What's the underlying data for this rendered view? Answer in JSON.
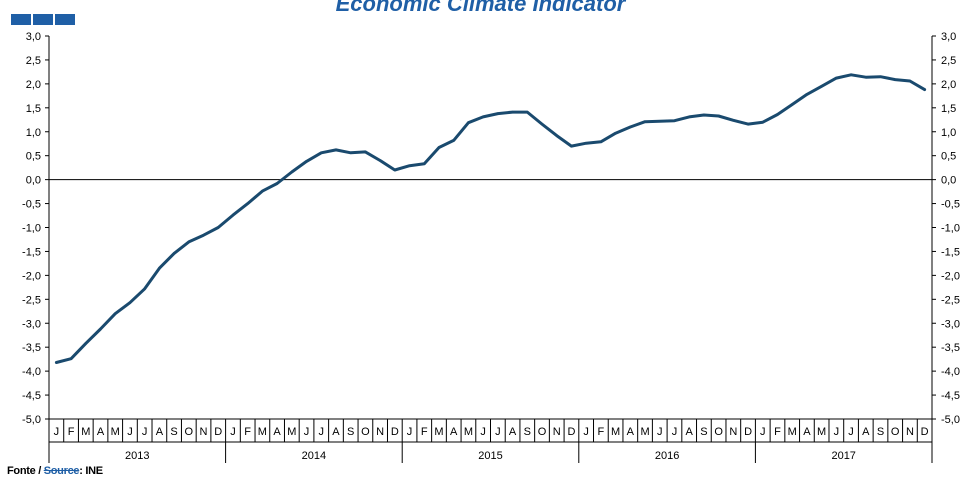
{
  "header": {
    "title": "Economic Climate Indicator",
    "logo_icon": "ine-logo-icon",
    "accent_color": "#1f5fa6"
  },
  "source": {
    "label_pt": "Fonte /",
    "label_en": "Source",
    "value": ": INE"
  },
  "chart_data": {
    "type": "line",
    "title": "Economic Climate Indicator",
    "xlabel": "",
    "ylabel": "",
    "ylim": [
      -5.0,
      3.0
    ],
    "yticks": [
      3.0,
      2.5,
      2.0,
      1.5,
      1.0,
      0.5,
      0.0,
      -0.5,
      -1.0,
      -1.5,
      -2.0,
      -2.5,
      -3.0,
      -3.5,
      -4.0,
      -4.5,
      -5.0
    ],
    "ytick_labels_left": [
      "3,0",
      "2,5",
      "2,0",
      "1,5",
      "1,0",
      "0,5",
      "0,0",
      "-0,5",
      "-1,0",
      "-1,5",
      "-2,0",
      "-2,5",
      "-3,0",
      "-3,5",
      "-4,0",
      "-4,5",
      "-5,0"
    ],
    "ytick_labels_right": [
      "3,0",
      "2,5",
      "2,0",
      "1,5",
      "1,0",
      "0,5",
      "0,0",
      "-0,5",
      "-1,0",
      "-1,5",
      "-2,0",
      "-2,5",
      "-3,0",
      "-3,5",
      "-4,0",
      "-4,5",
      "-5,0"
    ],
    "months": [
      "J",
      "F",
      "M",
      "A",
      "M",
      "J",
      "J",
      "A",
      "S",
      "O",
      "N",
      "D"
    ],
    "years": [
      "2013",
      "2014",
      "2015",
      "2016",
      "2017"
    ],
    "grid": false,
    "line_color": "#1a4a6e",
    "series": [
      {
        "name": "",
        "values": [
          -3.82,
          -3.74,
          -3.42,
          -3.12,
          -2.8,
          -2.57,
          -2.28,
          -1.85,
          -1.54,
          -1.3,
          -1.16,
          -1.0,
          -0.74,
          -0.5,
          -0.24,
          -0.08,
          0.16,
          0.38,
          0.56,
          0.62,
          0.56,
          0.58,
          0.4,
          0.2,
          0.29,
          0.33,
          0.67,
          0.82,
          1.19,
          1.31,
          1.38,
          1.41,
          1.41,
          1.16,
          0.92,
          0.7,
          0.76,
          0.79,
          0.97,
          1.1,
          1.21,
          1.22,
          1.23,
          1.31,
          1.35,
          1.33,
          1.24,
          1.16,
          1.2,
          1.36,
          1.57,
          1.78,
          1.95,
          2.12,
          2.19,
          2.14,
          2.15,
          2.09,
          2.06,
          1.88
        ]
      }
    ]
  }
}
